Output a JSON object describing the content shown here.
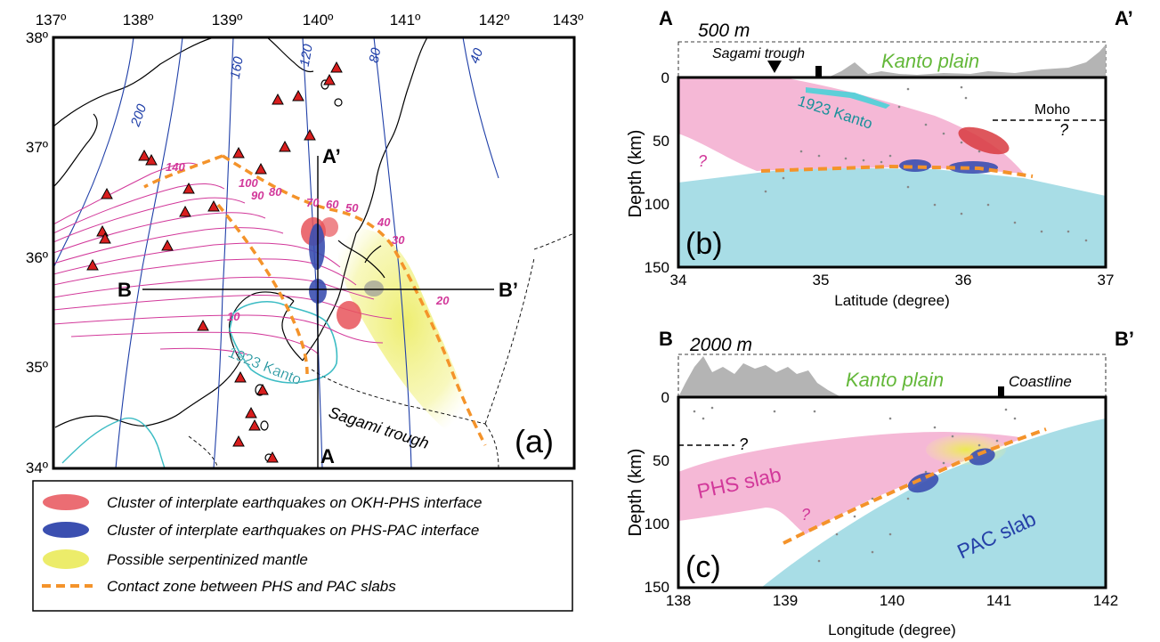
{
  "map": {
    "panel_label": "(a)",
    "lon_ticks": [
      "137º",
      "138º",
      "139º",
      "140º",
      "141º",
      "142º",
      "143º"
    ],
    "lat_ticks": [
      "38º",
      "37º",
      "36º",
      "35º",
      "34º"
    ],
    "pac_contours": [
      "200",
      "160",
      "120",
      "80",
      "40"
    ],
    "phs_contours": [
      "140",
      "100",
      "90",
      "80",
      "70",
      "60",
      "50",
      "40",
      "30",
      "20",
      "10"
    ],
    "section_a_start": "A",
    "section_a_end": "A’",
    "section_b_start": "B",
    "section_b_end": "B’",
    "kanto_label": "1923 Kanto",
    "trough_label": "Sagami trough"
  },
  "panel_b": {
    "label": "(b)",
    "start": "A",
    "end": "A’",
    "topo_scale": "500 m",
    "trough": "Sagami trough",
    "plain": "Kanto plain",
    "kanto": "1923 Kanto",
    "moho": "Moho",
    "q1": "?",
    "q2": "?",
    "ylabel": "Depth (km)",
    "xlabel": "Latitude (degree)",
    "xticks": [
      "34",
      "35",
      "36",
      "37"
    ],
    "yticks": [
      "0",
      "50",
      "100",
      "150"
    ]
  },
  "panel_c": {
    "label": "(c)",
    "start": "B",
    "end": "B’",
    "topo_scale": "2000 m",
    "plain": "Kanto plain",
    "coast": "Coastline",
    "phs": "PHS slab",
    "pac": "PAC slab",
    "q1": "?",
    "q2": "?",
    "ylabel": "Depth (km)",
    "xlabel": "Longitude (degree)",
    "xticks": [
      "138",
      "139",
      "140",
      "141",
      "142"
    ],
    "yticks": [
      "0",
      "50",
      "100",
      "150"
    ]
  },
  "legend": {
    "items": [
      "Cluster of interplate earthquakes on OKH-PHS interface",
      "Cluster of interplate earthquakes on PHS-PAC interface",
      "Possible serpentinized mantle",
      "Contact zone between PHS and PAC slabs"
    ]
  },
  "colors": {
    "phs_pink": "#f5b8d6",
    "pac_blue": "#a8dde6",
    "okh_phs_red": "#e8545a",
    "phs_pac_blue": "#3b4fb0",
    "serpentinite_yellow": "#f0f07a",
    "contact_orange": "#f4932a"
  }
}
